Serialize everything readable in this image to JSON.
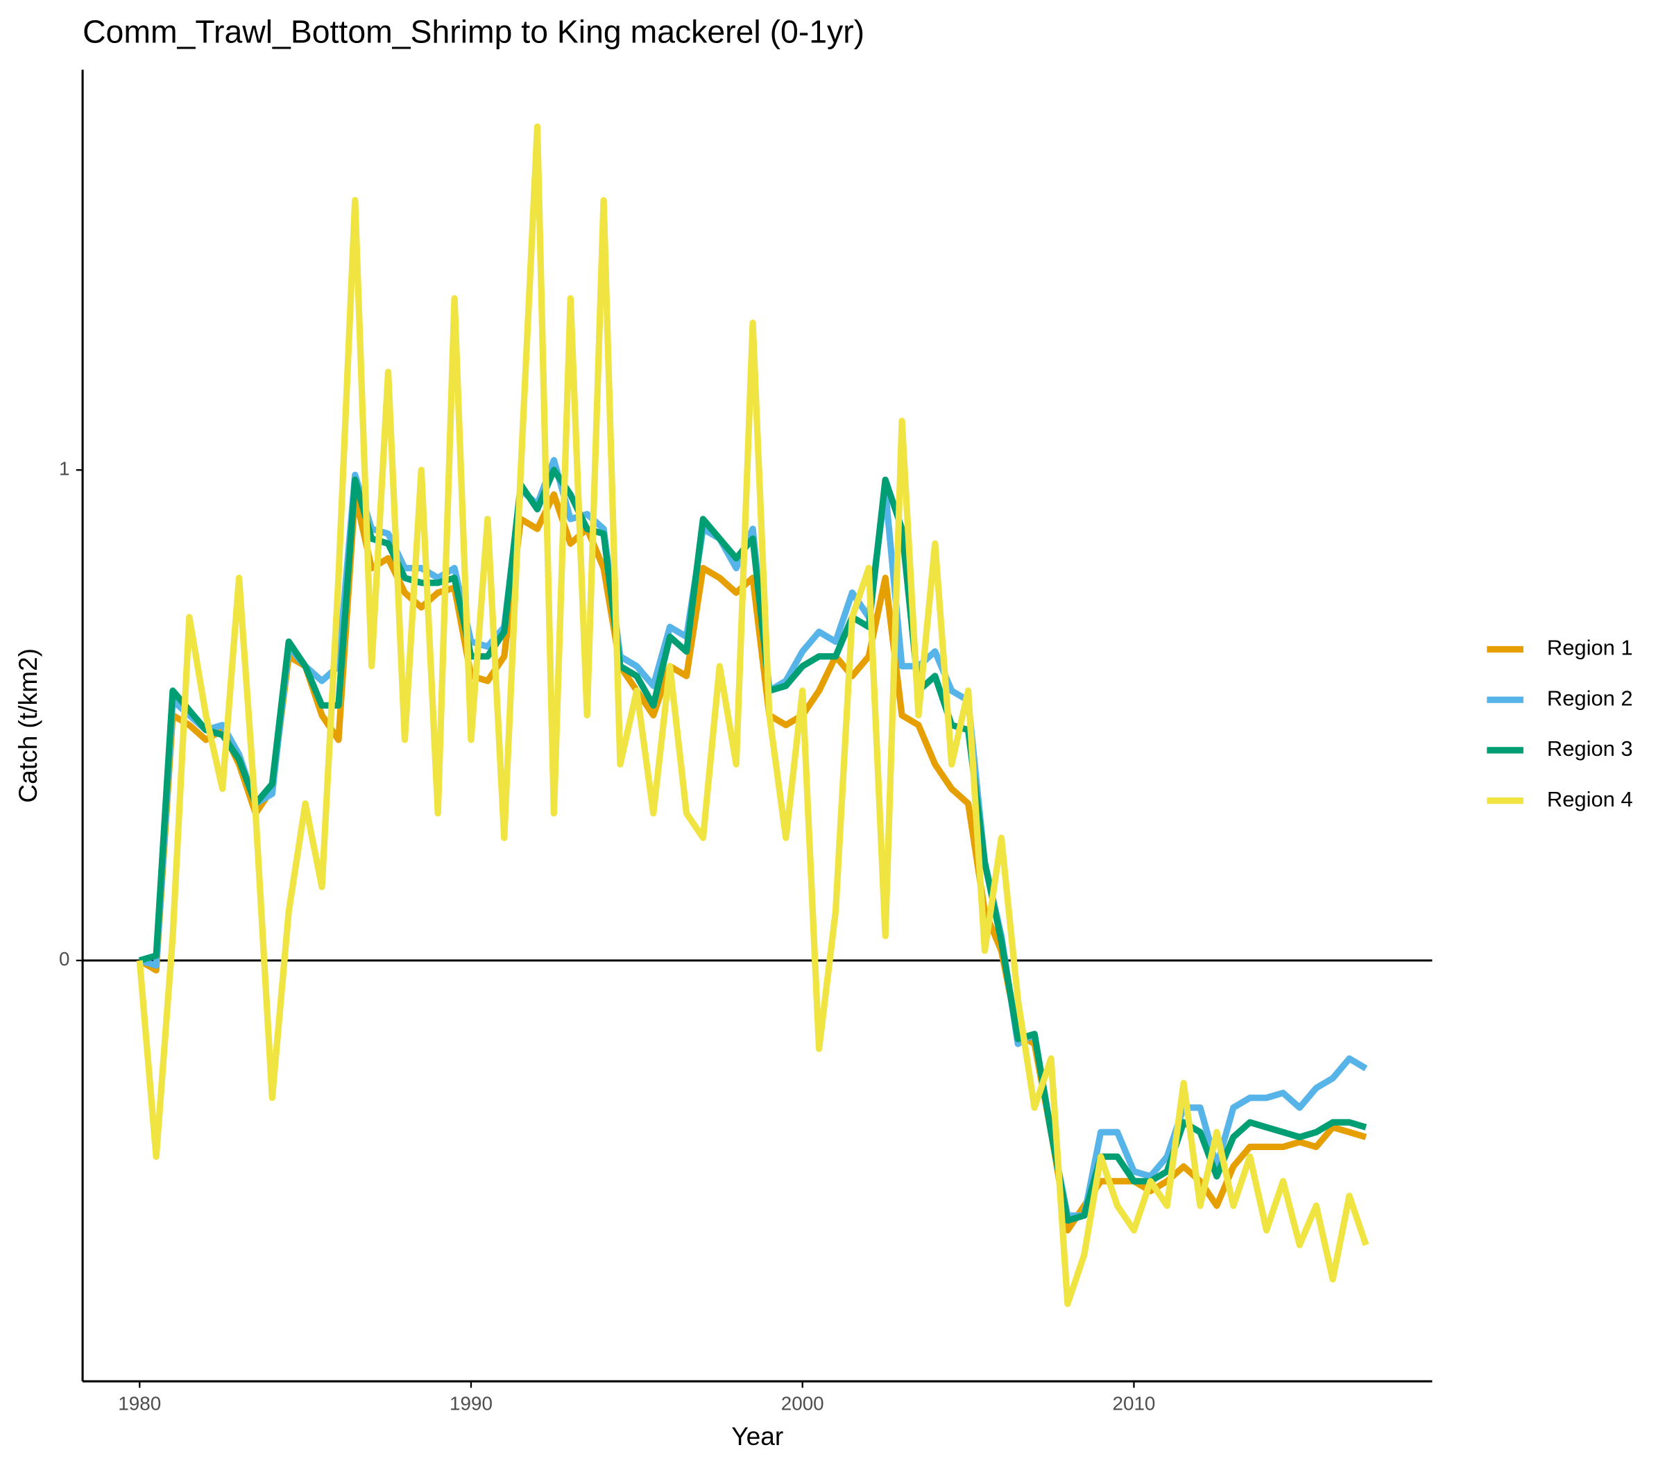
{
  "chart_data": {
    "type": "line",
    "title": "Comm_Trawl_Bottom_Shrimp to King mackerel (0-1yr)",
    "x_label": "Year",
    "y_label": "Catch (t/km2)",
    "x": [
      1980,
      1980.5,
      1981,
      1981.5,
      1982,
      1982.5,
      1983,
      1983.5,
      1984,
      1984.5,
      1985,
      1985.5,
      1986,
      1986.5,
      1987,
      1987.5,
      1988,
      1988.5,
      1989,
      1989.5,
      1990,
      1990.5,
      1991,
      1991.5,
      1992,
      1992.5,
      1993,
      1993.5,
      1994,
      1994.5,
      1995,
      1995.5,
      1996,
      1996.5,
      1997,
      1997.5,
      1998,
      1998.5,
      1999,
      1999.5,
      2000,
      2000.5,
      2001,
      2001.5,
      2002,
      2002.5,
      2003,
      2003.5,
      2004,
      2004.5,
      2005,
      2005.5,
      2006,
      2006.5,
      2007,
      2007.5,
      2008,
      2008.5,
      2009,
      2009.5,
      2010,
      2010.5,
      2011,
      2011.5,
      2012,
      2012.5,
      2013,
      2013.5,
      2014,
      2014.5,
      2015,
      2015.5,
      2016,
      2016.5,
      2017
    ],
    "series": [
      {
        "name": "Region 1",
        "color": "#E69F00",
        "values": [
          0,
          -0.02,
          0.5,
          0.48,
          0.45,
          0.47,
          0.4,
          0.3,
          0.35,
          0.62,
          0.6,
          0.5,
          0.45,
          0.95,
          0.8,
          0.82,
          0.75,
          0.72,
          0.75,
          0.76,
          0.58,
          0.57,
          0.62,
          0.9,
          0.88,
          0.95,
          0.85,
          0.88,
          0.8,
          0.6,
          0.55,
          0.5,
          0.6,
          0.58,
          0.8,
          0.78,
          0.75,
          0.78,
          0.5,
          0.48,
          0.5,
          0.55,
          0.62,
          0.58,
          0.62,
          0.78,
          0.5,
          0.48,
          0.4,
          0.35,
          0.32,
          0.1,
          0.02,
          -0.15,
          -0.17,
          -0.35,
          -0.55,
          -0.5,
          -0.45,
          -0.45,
          -0.45,
          -0.47,
          -0.45,
          -0.42,
          -0.45,
          -0.5,
          -0.42,
          -0.38,
          -0.38,
          -0.38,
          -0.37,
          -0.38,
          -0.34,
          -0.35,
          -0.36
        ]
      },
      {
        "name": "Region 2",
        "color": "#56B4E9",
        "values": [
          0,
          -0.01,
          0.53,
          0.5,
          0.47,
          0.48,
          0.42,
          0.32,
          0.34,
          0.64,
          0.6,
          0.57,
          0.6,
          0.99,
          0.88,
          0.87,
          0.8,
          0.8,
          0.78,
          0.8,
          0.65,
          0.64,
          0.68,
          0.96,
          0.93,
          1.02,
          0.9,
          0.91,
          0.88,
          0.62,
          0.6,
          0.56,
          0.68,
          0.66,
          0.88,
          0.86,
          0.8,
          0.88,
          0.55,
          0.57,
          0.63,
          0.67,
          0.65,
          0.75,
          0.7,
          0.96,
          0.6,
          0.6,
          0.63,
          0.55,
          0.53,
          0.2,
          0.05,
          -0.17,
          -0.15,
          -0.35,
          -0.52,
          -0.52,
          -0.35,
          -0.35,
          -0.43,
          -0.44,
          -0.4,
          -0.3,
          -0.3,
          -0.42,
          -0.3,
          -0.28,
          -0.28,
          -0.27,
          -0.3,
          -0.26,
          -0.24,
          -0.2,
          -0.22
        ]
      },
      {
        "name": "Region 3",
        "color": "#009E73",
        "values": [
          0,
          0.01,
          0.55,
          0.51,
          0.47,
          0.46,
          0.41,
          0.32,
          0.36,
          0.65,
          0.6,
          0.52,
          0.52,
          0.98,
          0.86,
          0.85,
          0.78,
          0.77,
          0.77,
          0.78,
          0.62,
          0.62,
          0.67,
          0.97,
          0.92,
          1.0,
          0.95,
          0.88,
          0.87,
          0.6,
          0.58,
          0.52,
          0.66,
          0.63,
          0.9,
          0.86,
          0.82,
          0.86,
          0.55,
          0.56,
          0.6,
          0.62,
          0.62,
          0.7,
          0.68,
          0.98,
          0.88,
          0.55,
          0.58,
          0.48,
          0.47,
          0.2,
          0.04,
          -0.16,
          -0.15,
          -0.35,
          -0.53,
          -0.52,
          -0.4,
          -0.4,
          -0.45,
          -0.45,
          -0.43,
          -0.33,
          -0.35,
          -0.44,
          -0.36,
          -0.33,
          -0.34,
          -0.35,
          -0.36,
          -0.35,
          -0.33,
          -0.33,
          -0.34
        ]
      },
      {
        "name": "Region 4",
        "color": "#F0E442",
        "values": [
          0,
          -0.4,
          0.05,
          0.7,
          0.5,
          0.35,
          0.78,
          0.3,
          -0.28,
          0.1,
          0.32,
          0.15,
          0.78,
          1.55,
          0.6,
          1.2,
          0.45,
          1.0,
          0.3,
          1.35,
          0.45,
          0.9,
          0.25,
          1.0,
          1.7,
          0.3,
          1.35,
          0.5,
          1.55,
          0.4,
          0.55,
          0.3,
          0.6,
          0.3,
          0.25,
          0.6,
          0.4,
          1.3,
          0.5,
          0.25,
          0.55,
          -0.18,
          0.1,
          0.7,
          0.8,
          0.05,
          1.1,
          0.5,
          0.85,
          0.4,
          0.55,
          0.02,
          0.25,
          -0.08,
          -0.3,
          -0.2,
          -0.7,
          -0.6,
          -0.4,
          -0.5,
          -0.55,
          -0.45,
          -0.5,
          -0.25,
          -0.5,
          -0.35,
          -0.5,
          -0.4,
          -0.55,
          -0.45,
          -0.58,
          -0.5,
          -0.65,
          -0.48,
          -0.58
        ]
      }
    ],
    "xlim": [
      1978.28,
      2019.0
    ],
    "ylim": [
      -0.858,
      1.816
    ],
    "xticks": [
      1980,
      1990,
      2000,
      2010
    ],
    "yticks": [
      0,
      1
    ],
    "zero_line": true,
    "legend": "right"
  }
}
